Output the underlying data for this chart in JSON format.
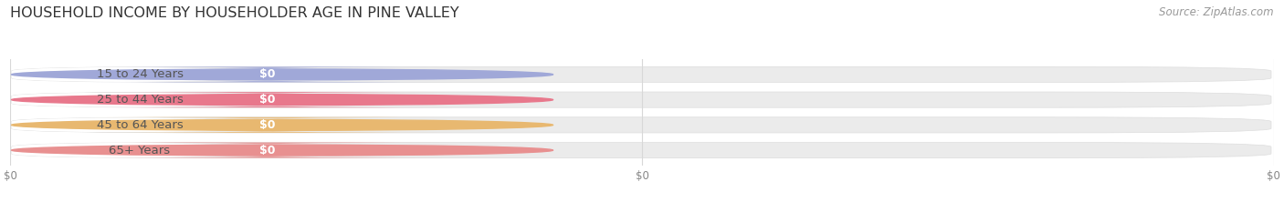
{
  "title": "HOUSEHOLD INCOME BY HOUSEHOLDER AGE IN PINE VALLEY",
  "source": "Source: ZipAtlas.com",
  "categories": [
    "15 to 24 Years",
    "25 to 44 Years",
    "45 to 64 Years",
    "65+ Years"
  ],
  "values": [
    0,
    0,
    0,
    0
  ],
  "bar_colors": [
    "#a0a8d8",
    "#e8788c",
    "#e8b870",
    "#e89090"
  ],
  "bar_bg_color": "#ebebeb",
  "title_fontsize": 11.5,
  "source_fontsize": 8.5,
  "label_fontsize": 9.5,
  "value_fontsize": 9,
  "background_color": "#ffffff",
  "text_color": "#555555",
  "grid_color": "#d8d8d8",
  "tick_color": "#888888"
}
